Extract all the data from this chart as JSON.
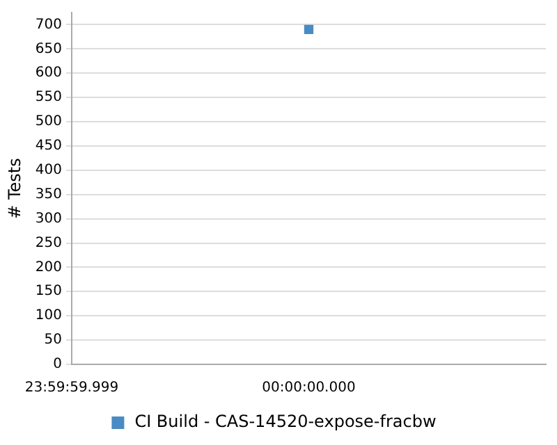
{
  "chart_data": {
    "type": "scatter",
    "ylabel": "# Tests",
    "categories": [
      "23:59:59.999",
      "00:00:00.000",
      null
    ],
    "series": [
      {
        "name": "CI Build - CAS-14520-expose-fracbw",
        "color": "#4a8bc4",
        "values": [
          null,
          690,
          null
        ]
      }
    ],
    "ylim": [
      0,
      725
    ],
    "yticks": [
      0,
      50,
      100,
      150,
      200,
      250,
      300,
      350,
      400,
      450,
      500,
      550,
      600,
      650,
      700
    ],
    "grid": "y",
    "legend": "bottom",
    "marker": "square"
  }
}
